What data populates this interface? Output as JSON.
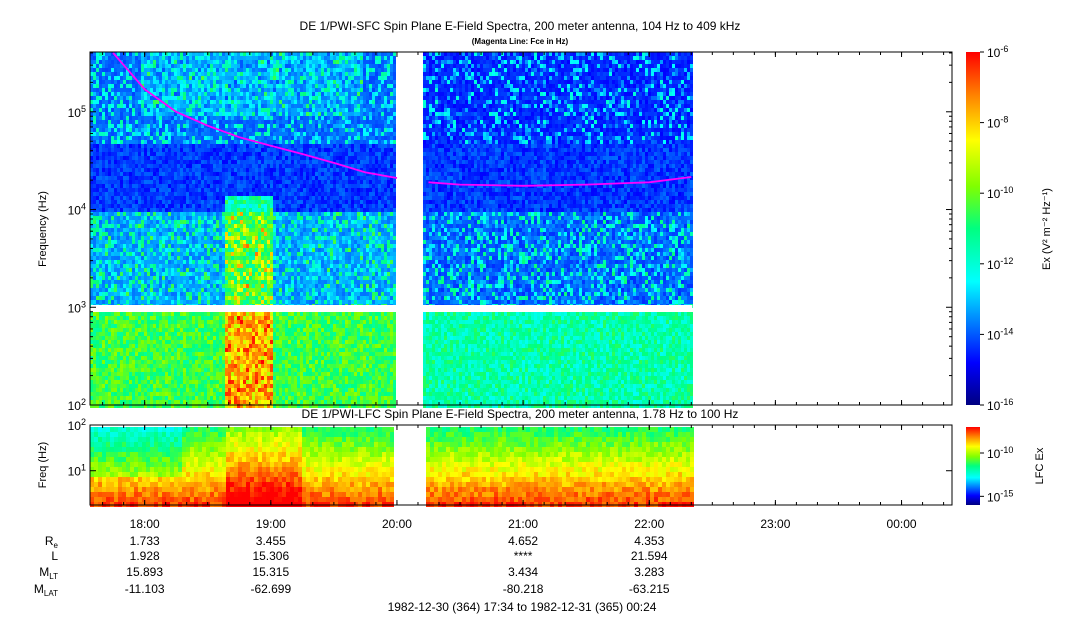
{
  "chart_data": [
    {
      "type": "heatmap",
      "title": "DE 1/PWI-SFC  Spin Plane E-Field Spectra, 200 meter antenna, 104 Hz to 409 kHz",
      "subtitle": "(Magenta Line: Fce in Hz)",
      "ylabel": "Frequency (Hz)",
      "yscale": "log",
      "ylim": [
        100,
        409000
      ],
      "y_ticks": [
        {
          "base": "10",
          "exp": "2"
        },
        {
          "base": "10",
          "exp": "3"
        },
        {
          "base": "10",
          "exp": "4"
        },
        {
          "base": "10",
          "exp": "5"
        }
      ],
      "xlim": [
        "17:34",
        "00:24"
      ],
      "data_gaps": [
        [
          "20:00",
          "20:12"
        ],
        [
          "22:20",
          "00:24"
        ]
      ],
      "colorbar": {
        "label": "Ex (V² m⁻² Hz⁻¹)",
        "scale": "log",
        "range": [
          1e-16,
          1e-06
        ],
        "ticks": [
          {
            "base": "10",
            "exp": "-6"
          },
          {
            "base": "10",
            "exp": "-8"
          },
          {
            "base": "10",
            "exp": "-10"
          },
          {
            "base": "10",
            "exp": "-12"
          },
          {
            "base": "10",
            "exp": "-14"
          },
          {
            "base": "10",
            "exp": "-16"
          }
        ]
      },
      "fce_line": {
        "color": "#ff00ff",
        "points": [
          {
            "t": "17:45",
            "f": 400000
          },
          {
            "t": "18:00",
            "f": 170000
          },
          {
            "t": "18:15",
            "f": 100000
          },
          {
            "t": "18:30",
            "f": 72000
          },
          {
            "t": "18:45",
            "f": 55000
          },
          {
            "t": "19:00",
            "f": 45000
          },
          {
            "t": "19:15",
            "f": 37000
          },
          {
            "t": "19:30",
            "f": 30000
          },
          {
            "t": "19:45",
            "f": 24000
          },
          {
            "t": "20:00",
            "f": 21000
          },
          {
            "t": "20:15",
            "f": 19000
          },
          {
            "t": "20:30",
            "f": 18000
          },
          {
            "t": "21:00",
            "f": 17500
          },
          {
            "t": "21:30",
            "f": 18000
          },
          {
            "t": "22:00",
            "f": 19000
          },
          {
            "t": "22:20",
            "f": 21500
          }
        ]
      }
    },
    {
      "type": "heatmap",
      "title": "DE 1/PWI-LFC  Spin Plane E-Field Spectra, 200 meter antenna, 1.78 Hz to 100 Hz",
      "ylabel": "Freq (Hz)",
      "yscale": "log",
      "ylim": [
        1.78,
        100
      ],
      "y_ticks": [
        {
          "base": "10",
          "exp": "1"
        },
        {
          "base": "10",
          "exp": "2"
        }
      ],
      "xlim": [
        "17:34",
        "00:24"
      ],
      "colorbar": {
        "label": "LFC Ex",
        "scale": "log",
        "range": [
          1e-16,
          1e-07
        ],
        "ticks": [
          {
            "base": "10",
            "exp": "-10"
          },
          {
            "base": "10",
            "exp": "-15"
          }
        ]
      }
    }
  ],
  "x_ticks": [
    "18:00",
    "19:00",
    "20:00",
    "21:00",
    "22:00",
    "23:00",
    "00:00"
  ],
  "ephemeris": {
    "labels": [
      {
        "main": "R",
        "sub": "e"
      },
      {
        "main": "L",
        "sub": ""
      },
      {
        "main": "M",
        "sub": "LT"
      },
      {
        "main": "M",
        "sub": "LAT"
      }
    ],
    "rows": [
      [
        "1.733",
        "3.455",
        "",
        "4.652",
        "4.353",
        "",
        ""
      ],
      [
        "1.928",
        "15.306",
        "",
        "****",
        "21.594",
        "",
        ""
      ],
      [
        "15.893",
        "15.315",
        "",
        "3.434",
        "3.283",
        "",
        ""
      ],
      [
        "-11.103",
        "-62.699",
        "",
        "-80.218",
        "-63.215",
        "",
        ""
      ]
    ]
  },
  "time_range": "1982-12-30 (364) 17:34 to 1982-12-31 (365) 00:24",
  "colors": {
    "fce_line": "#ff00ff",
    "background": "#ffffff",
    "axis": "#000000"
  }
}
